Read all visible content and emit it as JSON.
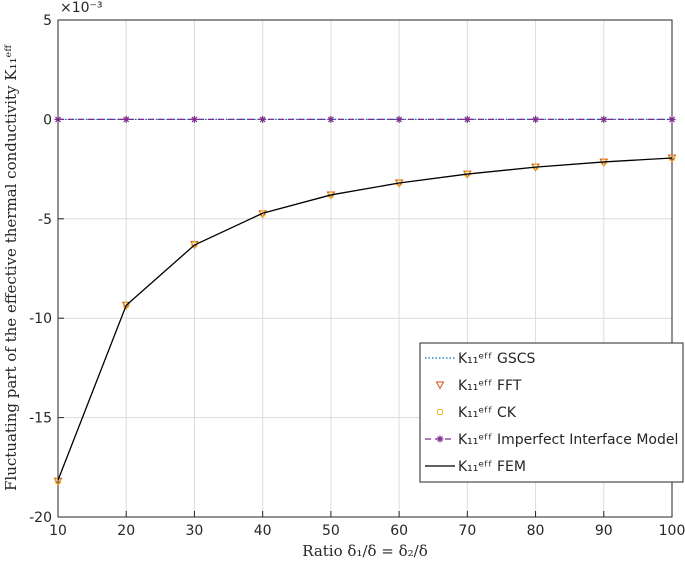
{
  "chart_data": {
    "type": "line",
    "x_label": "Ratio δ₁/δ = δ₂/δ",
    "y_label": "Fluctuating part of the effective thermal conductivity K₁₁ᵉᶠᶠ",
    "y_multiplier": "×10⁻³",
    "x": [
      10,
      20,
      30,
      40,
      50,
      60,
      70,
      80,
      90,
      100
    ],
    "series": [
      {
        "name": "K₁₁ᵉᶠᶠ GSCS",
        "color": "#0072bd",
        "line": "dotted",
        "marker": "none",
        "values": [
          0,
          0,
          0,
          0,
          0,
          0,
          0,
          0,
          0,
          0
        ]
      },
      {
        "name": "K₁₁ᵉᶠᶠ FFT",
        "color": "#d95319",
        "line": "none",
        "marker": "triangle-down",
        "values": [
          -18.2,
          -9.35,
          -6.3,
          -4.75,
          -3.8,
          -3.2,
          -2.75,
          -2.4,
          -2.15,
          -1.95
        ]
      },
      {
        "name": "K₁₁ᵉᶠᶠ CK",
        "color": "#edb120",
        "line": "none",
        "marker": "circle",
        "values": [
          -18.2,
          -9.35,
          -6.3,
          -4.75,
          -3.8,
          -3.2,
          -2.75,
          -2.4,
          -2.15,
          -1.95
        ]
      },
      {
        "name": "K₁₁ᵉᶠᶠ Imperfect Interface Model",
        "color": "#7e2f8e",
        "line": "dashed",
        "marker": "asterisk",
        "values": [
          0,
          0,
          0,
          0,
          0,
          0,
          0,
          0,
          0,
          0
        ]
      },
      {
        "name": "K₁₁ᵉᶠᶠ FEM",
        "color": "#000000",
        "line": "solid",
        "marker": "none",
        "values": [
          -18.15,
          -9.35,
          -6.32,
          -4.72,
          -3.8,
          -3.2,
          -2.75,
          -2.4,
          -2.14,
          -1.94
        ]
      }
    ],
    "xlim": [
      10,
      100
    ],
    "xticks": [
      10,
      20,
      30,
      40,
      50,
      60,
      70,
      80,
      90,
      100
    ],
    "ylim": [
      -20,
      5
    ],
    "yticks": [
      -20,
      -15,
      -10,
      -5,
      0,
      5
    ],
    "grid": true,
    "legend": "lower-right"
  }
}
